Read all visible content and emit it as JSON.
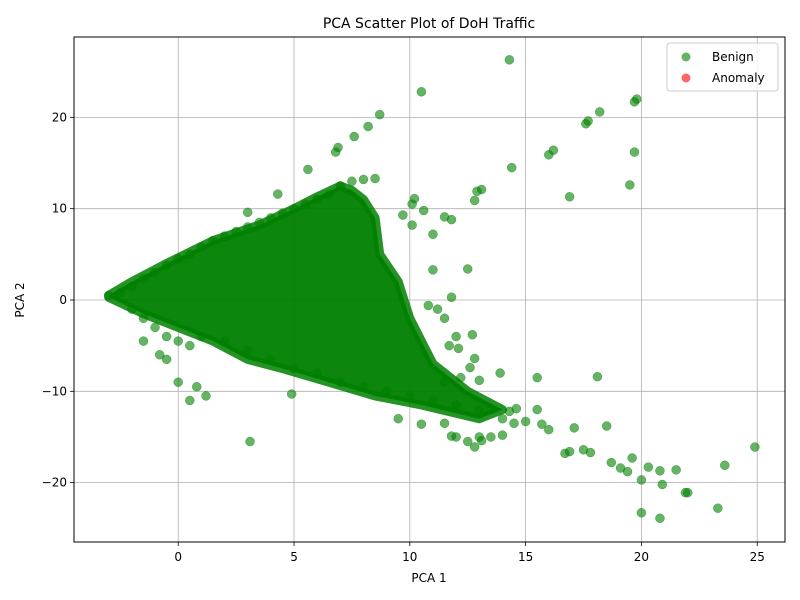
{
  "chart_data": {
    "type": "scatter",
    "title": "PCA Scatter Plot of DoH Traffic",
    "xlabel": "PCA 1",
    "ylabel": "PCA 2",
    "xlim": [
      -4.5,
      26.2
    ],
    "ylim": [
      -26.5,
      28.8
    ],
    "xticks": [
      0,
      5,
      10,
      15,
      20,
      25
    ],
    "xtick_labels": [
      "0",
      "5",
      "10",
      "15",
      "20",
      "25"
    ],
    "yticks": [
      -20,
      -10,
      0,
      10,
      20
    ],
    "ytick_labels": [
      "−20",
      "−10",
      "0",
      "10",
      "20"
    ],
    "grid": true,
    "legend_position": "top-right",
    "series": [
      {
        "name": "Benign",
        "color": "#008000",
        "opacity": 0.6,
        "points": [
          [
            -3.0,
            0.5
          ],
          [
            -2.5,
            0.8
          ],
          [
            -2.0,
            1.5
          ],
          [
            -1.5,
            2.3
          ],
          [
            -1.0,
            3.0
          ],
          [
            -0.5,
            3.8
          ],
          [
            0.0,
            4.5
          ],
          [
            0.5,
            5.0
          ],
          [
            1.0,
            5.8
          ],
          [
            1.5,
            6.5
          ],
          [
            2.0,
            7.0
          ],
          [
            2.5,
            7.5
          ],
          [
            3.0,
            8.0
          ],
          [
            3.5,
            8.5
          ],
          [
            4.0,
            9.0
          ],
          [
            4.5,
            9.5
          ],
          [
            5.0,
            10.0
          ],
          [
            5.5,
            10.5
          ],
          [
            6.0,
            11.0
          ],
          [
            6.5,
            11.5
          ],
          [
            7.0,
            12.5
          ],
          [
            7.5,
            13.0
          ],
          [
            8.0,
            13.2
          ],
          [
            8.5,
            13.3
          ],
          [
            -2.0,
            -1.0
          ],
          [
            -1.5,
            -2.0
          ],
          [
            -1.0,
            -3.0
          ],
          [
            -0.5,
            -4.0
          ],
          [
            0.0,
            -4.5
          ],
          [
            0.5,
            -5.0
          ],
          [
            1.0,
            -4.0
          ],
          [
            2.0,
            -4.5
          ],
          [
            3.0,
            -5.5
          ],
          [
            4.0,
            -6.5
          ],
          [
            5.0,
            -7.5
          ],
          [
            6.0,
            -8.0
          ],
          [
            7.0,
            -9.0
          ],
          [
            8.0,
            -9.5
          ],
          [
            9.0,
            -10.0
          ],
          [
            10.0,
            -10.5
          ],
          [
            11.0,
            -11.0
          ],
          [
            12.0,
            -11.5
          ],
          [
            13.0,
            -12.0
          ],
          [
            14.0,
            -13.0
          ],
          [
            -1.5,
            -4.5
          ],
          [
            -0.8,
            -6.0
          ],
          [
            -0.5,
            -6.5
          ],
          [
            0.0,
            -9.0
          ],
          [
            0.5,
            -11.0
          ],
          [
            0.8,
            -9.5
          ],
          [
            1.2,
            -10.5
          ],
          [
            4.9,
            -10.3
          ],
          [
            3.1,
            -15.5
          ],
          [
            10.5,
            22.8
          ],
          [
            14.3,
            26.3
          ],
          [
            8.7,
            20.3
          ],
          [
            8.2,
            19.0
          ],
          [
            7.6,
            17.9
          ],
          [
            6.9,
            16.7
          ],
          [
            6.8,
            16.2
          ],
          [
            5.6,
            14.3
          ],
          [
            4.3,
            11.6
          ],
          [
            3.0,
            9.6
          ],
          [
            17.6,
            19.3
          ],
          [
            17.7,
            19.6
          ],
          [
            18.2,
            20.6
          ],
          [
            19.7,
            21.7
          ],
          [
            19.8,
            22.0
          ],
          [
            16.0,
            15.9
          ],
          [
            16.2,
            16.4
          ],
          [
            19.7,
            16.2
          ],
          [
            14.4,
            14.5
          ],
          [
            19.5,
            12.6
          ],
          [
            16.9,
            11.3
          ],
          [
            12.9,
            11.9
          ],
          [
            13.1,
            12.1
          ],
          [
            12.8,
            10.9
          ],
          [
            9.7,
            9.3
          ],
          [
            10.1,
            10.5
          ],
          [
            10.2,
            11.1
          ],
          [
            11.5,
            9.1
          ],
          [
            11.8,
            8.8
          ],
          [
            10.6,
            9.8
          ],
          [
            11.0,
            7.2
          ],
          [
            10.1,
            8.2
          ],
          [
            11.0,
            3.3
          ],
          [
            12.5,
            3.4
          ],
          [
            11.8,
            0.3
          ],
          [
            10.8,
            -0.6
          ],
          [
            11.2,
            -1.0
          ],
          [
            11.5,
            -2.0
          ],
          [
            12.0,
            -4.0
          ],
          [
            12.7,
            -3.8
          ],
          [
            12.8,
            -6.4
          ],
          [
            12.1,
            -5.3
          ],
          [
            11.7,
            -5.0
          ],
          [
            13.9,
            -8.0
          ],
          [
            15.5,
            -8.5
          ],
          [
            18.1,
            -8.4
          ],
          [
            15.5,
            -12.0
          ],
          [
            15.7,
            -13.6
          ],
          [
            16.0,
            -14.2
          ],
          [
            17.1,
            -14.0
          ],
          [
            18.5,
            -13.8
          ],
          [
            16.7,
            -16.8
          ],
          [
            16.9,
            -16.6
          ],
          [
            17.5,
            -16.4
          ],
          [
            17.8,
            -16.7
          ],
          [
            18.7,
            -17.8
          ],
          [
            19.1,
            -18.4
          ],
          [
            19.4,
            -18.8
          ],
          [
            19.6,
            -17.3
          ],
          [
            20.0,
            -19.7
          ],
          [
            20.3,
            -18.3
          ],
          [
            20.8,
            -18.7
          ],
          [
            20.9,
            -20.2
          ],
          [
            21.5,
            -18.6
          ],
          [
            21.9,
            -21.1
          ],
          [
            22.0,
            -21.1
          ],
          [
            23.3,
            -22.8
          ],
          [
            23.6,
            -18.1
          ],
          [
            24.9,
            -16.1
          ],
          [
            20.0,
            -23.3
          ],
          [
            20.8,
            -23.9
          ],
          [
            13.0,
            -15.0
          ],
          [
            13.5,
            -15.0
          ],
          [
            14.0,
            -14.8
          ],
          [
            14.5,
            -13.5
          ],
          [
            15.0,
            -13.3
          ],
          [
            12.5,
            -15.5
          ],
          [
            12.8,
            -16.1
          ],
          [
            13.1,
            -15.4
          ],
          [
            14.3,
            -12.2
          ],
          [
            14.6,
            -11.9
          ],
          [
            11.5,
            -13.5
          ],
          [
            11.8,
            -14.9
          ],
          [
            12.0,
            -15.0
          ],
          [
            10.5,
            -13.6
          ],
          [
            9.5,
            -13.0
          ],
          [
            11.5,
            -9.0
          ],
          [
            12.2,
            -8.5
          ],
          [
            12.6,
            -7.4
          ],
          [
            13.0,
            -8.8
          ]
        ]
      },
      {
        "name": "Anomaly",
        "color": "#ff0000",
        "opacity": 0.6,
        "points": []
      }
    ]
  }
}
